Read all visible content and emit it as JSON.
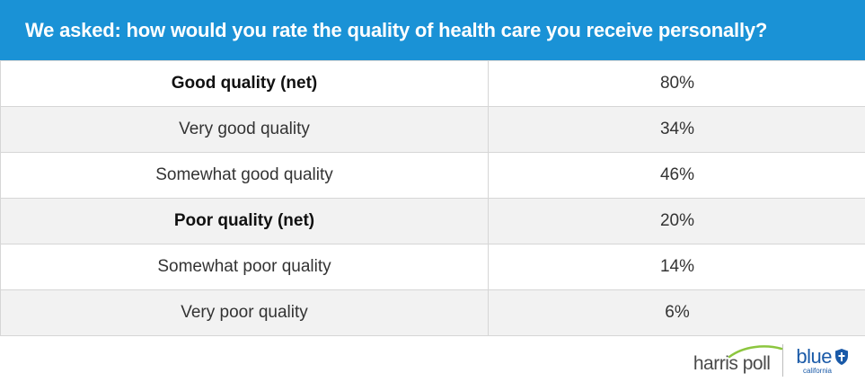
{
  "header": {
    "title": "We asked: how would you rate the quality of health care you receive personally?"
  },
  "rows": [
    {
      "label": "Good quality (net)",
      "value": "80%",
      "net": true,
      "shaded": false
    },
    {
      "label": "Very good quality",
      "value": "34%",
      "net": false,
      "shaded": true
    },
    {
      "label": "Somewhat good quality",
      "value": "46%",
      "net": false,
      "shaded": false
    },
    {
      "label": "Poor quality (net)",
      "value": "20%",
      "net": true,
      "shaded": true
    },
    {
      "label": "Somewhat poor quality",
      "value": "14%",
      "net": false,
      "shaded": false
    },
    {
      "label": "Very poor quality",
      "value": "6%",
      "net": false,
      "shaded": true
    }
  ],
  "logos": {
    "harris": "harris poll",
    "blue": "blue",
    "blue_sub": "california"
  },
  "colors": {
    "header_bg": "#1a92d6",
    "shaded_row": "#f2f2f2",
    "harris_swoosh": "#8cc63f",
    "blue_brand": "#1a5aa8"
  },
  "icons": {
    "harris_mark": "green-swoosh-icon",
    "blue_mark": "blue-shield-icon"
  }
}
